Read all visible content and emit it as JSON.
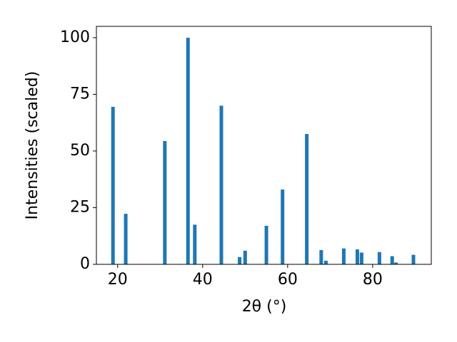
{
  "chart_data": {
    "type": "bar",
    "xlabel": "2θ (°)",
    "ylabel": "Intensities (scaled)",
    "x": [
      18.9,
      21.9,
      31.1,
      36.55,
      38.15,
      44.4,
      48.7,
      50.0,
      55.0,
      58.8,
      64.5,
      67.9,
      69.0,
      73.2,
      76.4,
      77.4,
      81.6,
      84.6,
      85.5,
      89.6
    ],
    "values": [
      69.5,
      22.3,
      54.4,
      100,
      17.5,
      70,
      3.2,
      6,
      17,
      33,
      57.5,
      6.3,
      1.6,
      7,
      6.6,
      5.2,
      5.4,
      3.6,
      0.8,
      4.2
    ],
    "color": "#1f77b4",
    "xlim": [
      15,
      93.8
    ],
    "xticks": [
      20,
      40,
      60,
      80
    ],
    "ylim": [
      0,
      105
    ],
    "yticks": [
      0,
      25,
      50,
      75,
      100
    ],
    "grid": false
  }
}
